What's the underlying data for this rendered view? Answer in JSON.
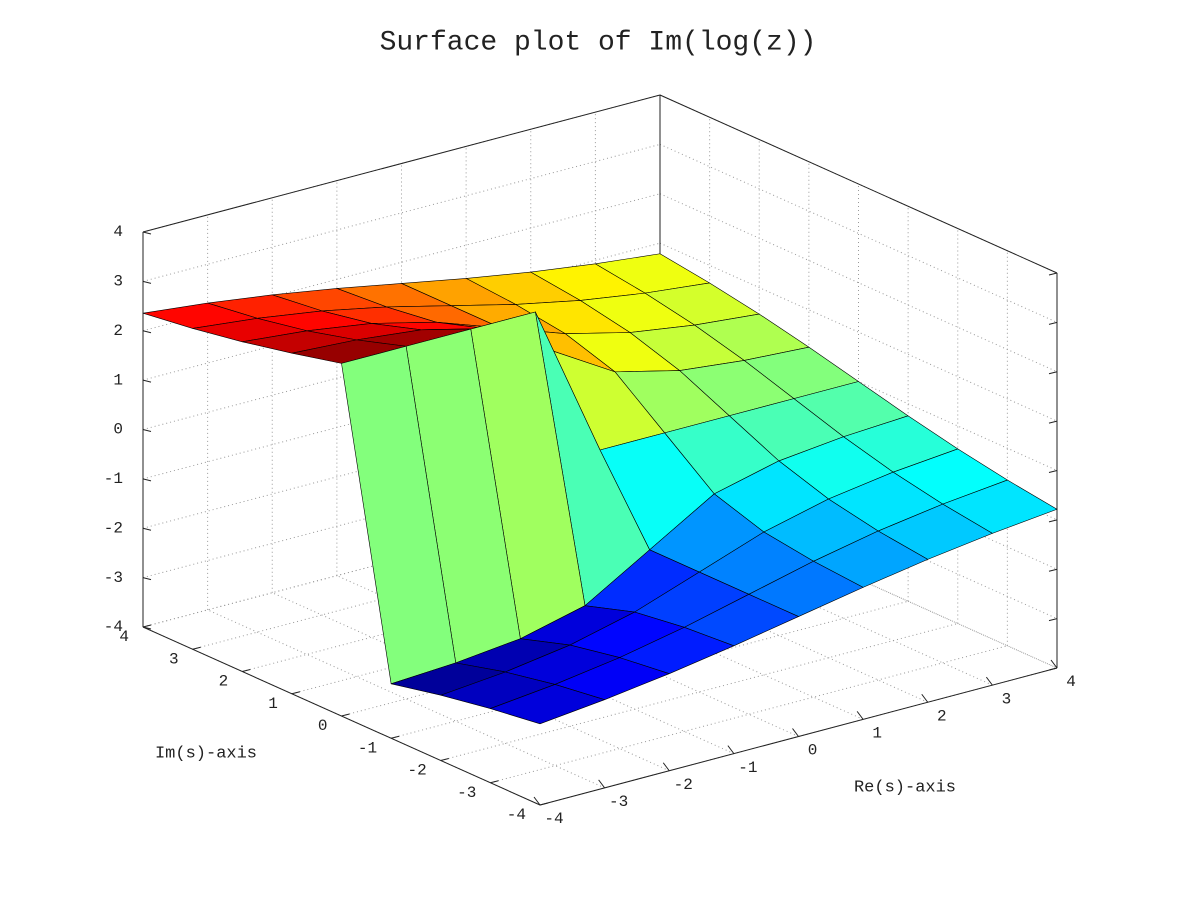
{
  "chart_data": {
    "type": "surface",
    "title": "Surface plot of Im(log(z))",
    "xlabel": "Re(s)-axis",
    "ylabel": "Im(s)-axis",
    "x": [
      -4,
      -3,
      -2,
      -1,
      0,
      1,
      2,
      3,
      4
    ],
    "y": [
      -4,
      -3,
      -2,
      -1,
      0,
      1,
      2,
      3,
      4
    ],
    "z": [
      [
        -2.356,
        -2.214,
        -2.034,
        -1.816,
        -1.571,
        -1.326,
        -1.107,
        -0.927,
        -0.785
      ],
      [
        -2.498,
        -2.356,
        -2.159,
        -1.893,
        -1.571,
        -1.249,
        -0.983,
        -0.785,
        -0.644
      ],
      [
        -2.678,
        -2.554,
        -2.356,
        -2.034,
        -1.571,
        -1.107,
        -0.785,
        -0.588,
        -0.464
      ],
      [
        -2.897,
        -2.82,
        -2.678,
        -2.356,
        -1.571,
        -0.785,
        -0.464,
        -0.322,
        -0.245
      ],
      [
        3.142,
        3.142,
        3.142,
        3.142,
        0,
        0,
        0,
        0,
        0
      ],
      [
        2.897,
        2.82,
        2.678,
        2.356,
        1.571,
        0.785,
        0.464,
        0.322,
        0.245
      ],
      [
        2.678,
        2.554,
        2.356,
        2.034,
        1.571,
        1.107,
        0.785,
        0.588,
        0.464
      ],
      [
        2.498,
        2.356,
        2.159,
        1.893,
        1.571,
        1.249,
        0.983,
        0.785,
        0.644
      ],
      [
        2.356,
        2.214,
        2.034,
        1.816,
        1.571,
        1.326,
        1.107,
        0.927,
        0.785
      ]
    ],
    "xlim": [
      -4,
      4
    ],
    "ylim": [
      -4,
      4
    ],
    "zlim": [
      -4,
      4
    ],
    "xticks": [
      -4,
      -3,
      -2,
      -1,
      0,
      1,
      2,
      3,
      4
    ],
    "yticks": [
      -4,
      -3,
      -2,
      -1,
      0,
      1,
      2,
      3,
      4
    ],
    "zticks": [
      -4,
      -3,
      -2,
      -1,
      0,
      1,
      2,
      3,
      4
    ],
    "grid": true,
    "colormap": "jet"
  }
}
